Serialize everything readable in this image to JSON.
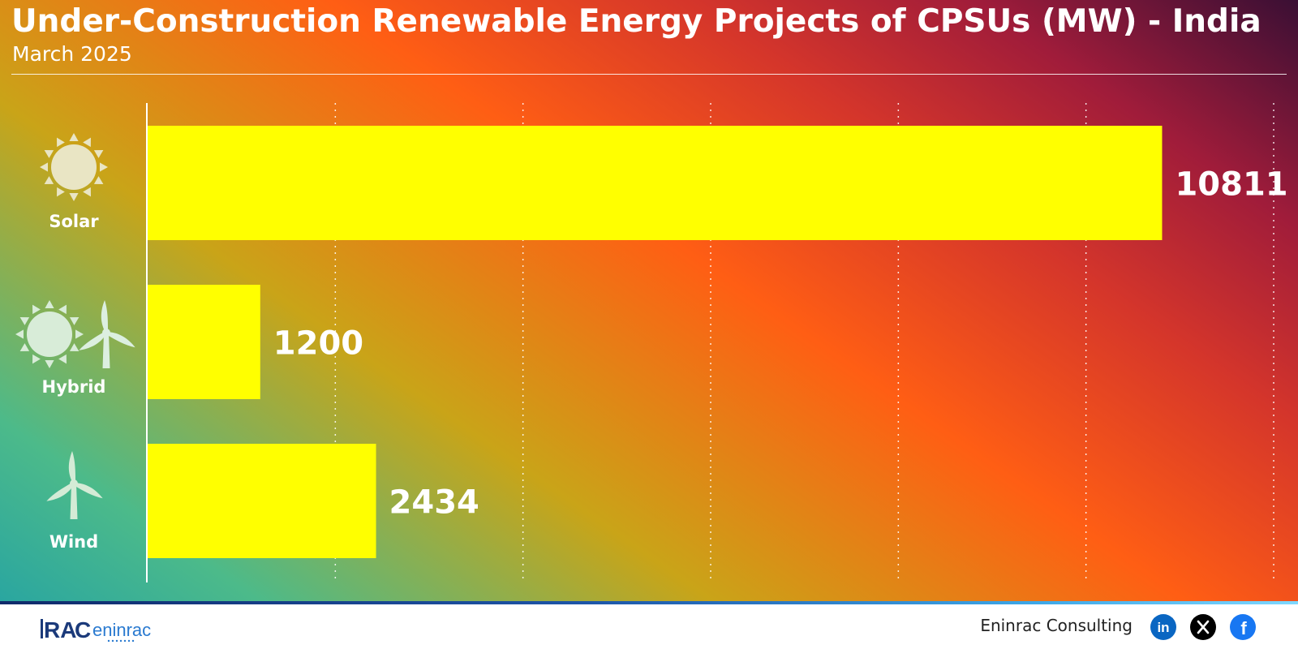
{
  "header": {
    "title": "Under-Construction Renewable Energy Projects of CPSUs (MW) - India",
    "subtitle": "March 2025"
  },
  "chart_data": {
    "type": "bar",
    "orientation": "horizontal",
    "title": "Under-Construction Renewable Energy Projects of CPSUs (MW) - India",
    "subtitle": "March 2025",
    "categories": [
      "Solar",
      "Hybrid",
      "Wind"
    ],
    "values": [
      10811,
      1200,
      2434
    ],
    "xlim": [
      0,
      12000
    ],
    "x_gridlines": [
      2000,
      4000,
      6000,
      8000,
      10000,
      12000
    ],
    "grid": "vertical dotted",
    "bar_color": "#ffff00",
    "category_icons": [
      "sun-icon",
      "sun-and-wind-turbine-icon",
      "wind-turbine-icon"
    ],
    "data_labels": true
  },
  "footer": {
    "brand": "Eninrac Consulting",
    "logo_text": "eninrac",
    "social": [
      "linkedin-icon",
      "x-icon",
      "facebook-icon"
    ],
    "social_colors": {
      "linkedin": "#0a66c2",
      "x": "#000000",
      "facebook": "#1877f2"
    }
  }
}
